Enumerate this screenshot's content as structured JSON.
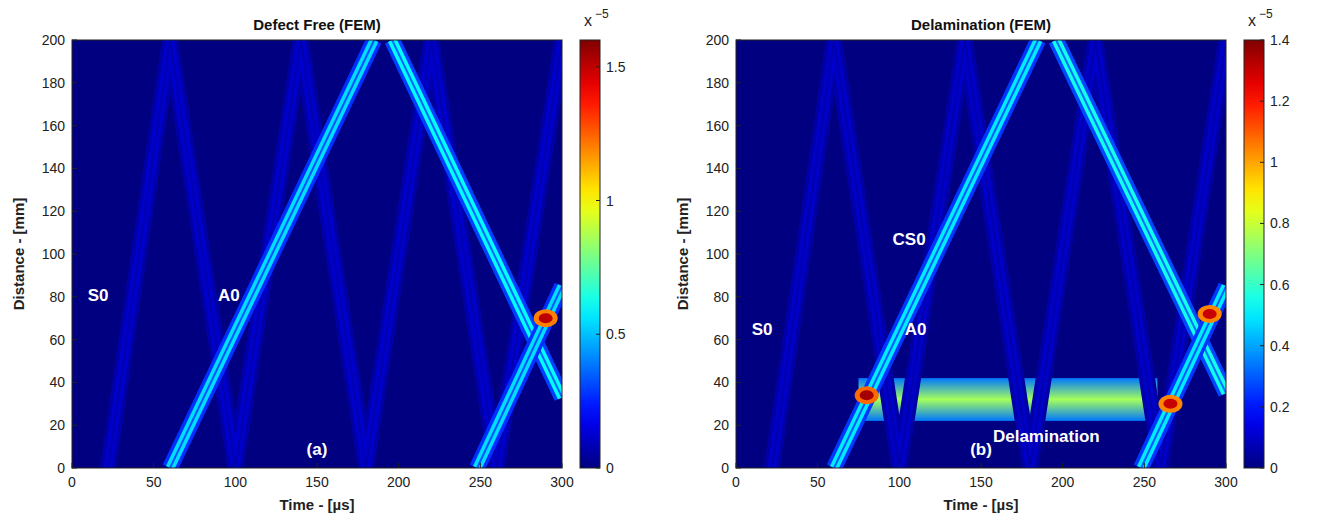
{
  "chart_data": [
    {
      "type": "heatmap",
      "title": "Defect Free (FEM)",
      "x_label": "Time - [µs]",
      "y_label": "Distance - [mm]",
      "xlim": [
        0,
        300
      ],
      "xticks": [
        0,
        50,
        100,
        150,
        200,
        250,
        300
      ],
      "ylim": [
        0,
        200
      ],
      "yticks": [
        0,
        20,
        40,
        60,
        80,
        100,
        120,
        140,
        160,
        180,
        200
      ],
      "colorbar_lim": [
        0,
        1.6
      ],
      "colorbar_ticks": [
        0,
        0.5,
        1,
        1.5
      ],
      "colorbar_label": "x",
      "colorbar_exponent": "−5",
      "series": [
        {
          "x": [
            22,
            60,
            100,
            140,
            180,
            220,
            260,
            300
          ],
          "values": [
            0,
            200,
            0,
            200,
            0,
            200,
            0,
            200
          ],
          "level": 0.12
        },
        {
          "x": [
            60,
            185
          ],
          "values": [
            0,
            200
          ],
          "level": 0.55
        },
        {
          "x": [
            196,
            300
          ],
          "values": [
            200,
            33
          ],
          "level": 0.6
        },
        {
          "x": [
            248,
            300
          ],
          "values": [
            0,
            85
          ],
          "level": 0.55
        }
      ],
      "points": [
        {
          "x": 290,
          "y": 70,
          "level": 1.5
        }
      ],
      "annotations": [
        {
          "text": "S0",
          "x": 16,
          "y": 78
        },
        {
          "text": "A0",
          "x": 96,
          "y": 78
        },
        {
          "text": "(a)",
          "x": 150,
          "y": 6
        }
      ]
    },
    {
      "type": "heatmap",
      "title": "Delamination (FEM)",
      "x_label": "Time - [µs]",
      "y_label": "Distance - [mm]",
      "xlim": [
        0,
        300
      ],
      "xticks": [
        0,
        50,
        100,
        150,
        200,
        250,
        300
      ],
      "ylim": [
        0,
        200
      ],
      "yticks": [
        0,
        20,
        40,
        60,
        80,
        100,
        120,
        140,
        160,
        180,
        200
      ],
      "colorbar_lim": [
        0,
        1.4
      ],
      "colorbar_ticks": [
        0,
        0.2,
        0.4,
        0.6,
        0.8,
        1,
        1.2,
        1.4
      ],
      "colorbar_label": "x",
      "colorbar_exponent": "−5",
      "series": [
        {
          "x": [
            22,
            60,
            100,
            140,
            180,
            220,
            260,
            300
          ],
          "values": [
            0,
            200,
            0,
            200,
            0,
            200,
            0,
            200
          ],
          "level": 0.1
        },
        {
          "x": [
            60,
            185
          ],
          "values": [
            0,
            200
          ],
          "level": 0.5
        },
        {
          "x": [
            196,
            300
          ],
          "values": [
            200,
            35
          ],
          "level": 0.55
        },
        {
          "x": [
            248,
            300
          ],
          "values": [
            0,
            85
          ],
          "level": 0.5
        }
      ],
      "regions": [
        {
          "x": [
            75,
            258
          ],
          "y": [
            22,
            42
          ],
          "level": 0.75
        }
      ],
      "points": [
        {
          "x": 80,
          "y": 34,
          "level": 1.35
        },
        {
          "x": 266,
          "y": 30,
          "level": 1.3
        },
        {
          "x": 290,
          "y": 72,
          "level": 1.3
        }
      ],
      "annotations": [
        {
          "text": "CS0",
          "x": 106,
          "y": 104
        },
        {
          "text": "S0",
          "x": 16,
          "y": 62
        },
        {
          "text": "A0",
          "x": 110,
          "y": 62
        },
        {
          "text": "Delamination",
          "x": 190,
          "y": 12
        },
        {
          "text": "(b)",
          "x": 150,
          "y": 6
        }
      ]
    }
  ]
}
